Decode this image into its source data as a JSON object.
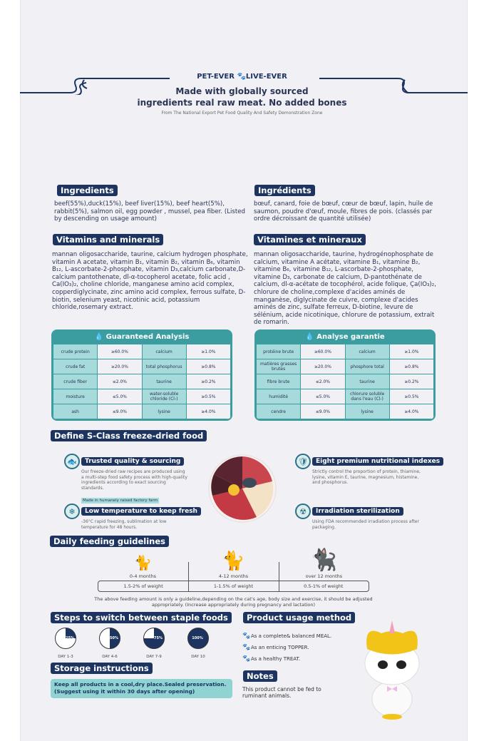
{
  "header": {
    "brand_left": "PET-EVER",
    "brand_right": "LIVE-EVER",
    "paw_icon": "paw-icon",
    "headline_1": "Made with globally sourced",
    "headline_2": "ingredients real raw meat. No added bones",
    "subline": "From The National Export Pet Food Quality And Safety Demonstration Zone"
  },
  "en": {
    "ingredients_title": "Ingredients",
    "ingredients": "beef(55%),duck(15%), beef liver(15%), beef heart(5%), rabbit(5%), salmon oil, egg powder , mussel, pea fiber. (Listed by descending on usage amount)",
    "vitamins_title": "Vitamins and minerals",
    "vitamins": "mannan oligosaccharide, taurine, calcium hydrogen phosphate, vitamin A acetate, vitamin B₁, vitamin B₂, vitamin B₆, vitamin B₁₂, L-ascorbate-2-phosphate, vitamin D₃,calcium carbonate,D-calcium pantothenate, dl-α-tocopherol acetate, folic acid , Ca(IO₃)₂, choline chloride, manganese amino acid complex, copperdiglycinate, zinc amino acid complex, ferrous sulfate, D-biotin, selenium yeast, nicotinic acid, potassium chloride,rosemary extract.",
    "analysis_title": "Guaranteed Analysis",
    "analysis": [
      [
        "crude protein",
        "≥60.0%",
        "calcium",
        "≥1.0%"
      ],
      [
        "crude fat",
        "≥20.0%",
        "total phosphorus",
        "≥0.8%"
      ],
      [
        "crude fiber",
        "≤2.0%",
        "taurine",
        "≥0.2%"
      ],
      [
        "moisture",
        "≤5.0%",
        "water-soluble chloride (Cl-)",
        "≥0.5%"
      ],
      [
        "ash",
        "≤9.0%",
        "lysine",
        "≥4.0%"
      ]
    ]
  },
  "fr": {
    "ingredients_title": "Ingrédients",
    "ingredients": "bœuf, canard, foie de bœuf, cœur de bœuf, lapin, huile de saumon, poudre d'œuf, moule, fibres de pois. (classés par ordre décroissant de quantité utilisée)",
    "vitamins_title": "Vitamines et mineraux",
    "vitamins": "mannan oligosaccharide, taurine, hydrogénophosphate de calcium, vitamine A acétate, vitamine B₁, vitamine B₂, vitamine B₆, vitamine B₁₂, L-ascorbate-2-phosphate, vitamine D₃, carbonate de calcium, D-pantothénate de calcium, dl-α-acétate de tocophérol, acide folique, Ça(IO₃)₂, chlorure de choline,complexe d'acides aminés de manganèse, diglycinate de cuivre, complexe d'acides aminés de zinc, sulfate ferreux, D-biotine, levure de sélénium, acide nicotinique, chlorure de potassium, extrait de romarin.",
    "analysis_title": "Analyse garantie",
    "analysis": [
      [
        "protéine brute",
        "≥60.0%",
        "calcium",
        "≥1.0%"
      ],
      [
        "matières grasses brutes",
        "≥20.0%",
        "phosphore total",
        "≥0.8%"
      ],
      [
        "fibre brute",
        "≤2.0%",
        "taurine",
        "≥0.2%"
      ],
      [
        "humidité",
        "≤5.0%",
        "chlorure soluble dans l'eau (Cl-)",
        "≥0.5%"
      ],
      [
        "cendre",
        "≤9.0%",
        "lysine",
        "≥4.0%"
      ]
    ]
  },
  "define": {
    "title": "Define S-Class freeze-dried food",
    "features": [
      {
        "icon": "fish-icon",
        "title": "Trusted quality & sourcing",
        "text": "Our freeze-dried raw recipes are produced using a multi-step food safety process with high-quality ingredients according to exact sourcing standards.",
        "tag": "Made in humanely raised factory farm"
      },
      {
        "icon": "shield-icon",
        "title": "Eight premium nutritional indexes",
        "text": "Strictly control the proportion of protein, thiamine, lysine, vitamin E, taurine, magnesium, histamine, and phosphorus."
      },
      {
        "icon": "snowflake-icon",
        "title": "Low temperature to keep fresh",
        "text": "-36°C rapid freezing, sublimation at low temperature for 48 hours."
      },
      {
        "icon": "radiation-icon",
        "title": "Irradiation sterilization",
        "text": "Using FDA recommended irradiation process after packaging."
      }
    ]
  },
  "feeding": {
    "title": "Daily feeding guidelines",
    "stages": [
      {
        "age": "0-4 months",
        "amount": "1.5-2% of weight"
      },
      {
        "age": "4-12 months",
        "amount": "1-1.5% of weight"
      },
      {
        "age": "over 12 months",
        "amount": "0.5-1% of weight"
      }
    ],
    "note": "The above feeding amount is only a guideline,depending on the cat's age, body size and exercise, it should be adjusted appropriately. (Increase appropriately during pregnancy and lactation)"
  },
  "steps": {
    "title": "Steps to switch between staple foods",
    "items": [
      {
        "percent": 25,
        "label": "25%",
        "day": "DAY 1-3"
      },
      {
        "percent": 50,
        "label": "50%",
        "day": "DAY 4-6"
      },
      {
        "percent": 75,
        "label": "75%",
        "day": "DAY 7-9"
      },
      {
        "percent": 100,
        "label": "100%",
        "day": "DAY 10"
      }
    ]
  },
  "storage": {
    "title": "Storage instructions",
    "text": "Keep all products in a cool,dry place.Sealed preservation. (Suggest using it within 30 days after opening)"
  },
  "usage": {
    "title": "Product usage method",
    "items": [
      "As a complete& balanced MEAL.",
      "As an enticing TOPPER.",
      "As a healthy TREAT."
    ]
  },
  "notes": {
    "title": "Notes",
    "text": "This product cannot be fed to ruminant animals."
  },
  "colors": {
    "navy": "#1d3461",
    "teal": "#3b9d9f",
    "teal_light": "#a7dbdb",
    "storage_bg": "#8fd3d3"
  }
}
